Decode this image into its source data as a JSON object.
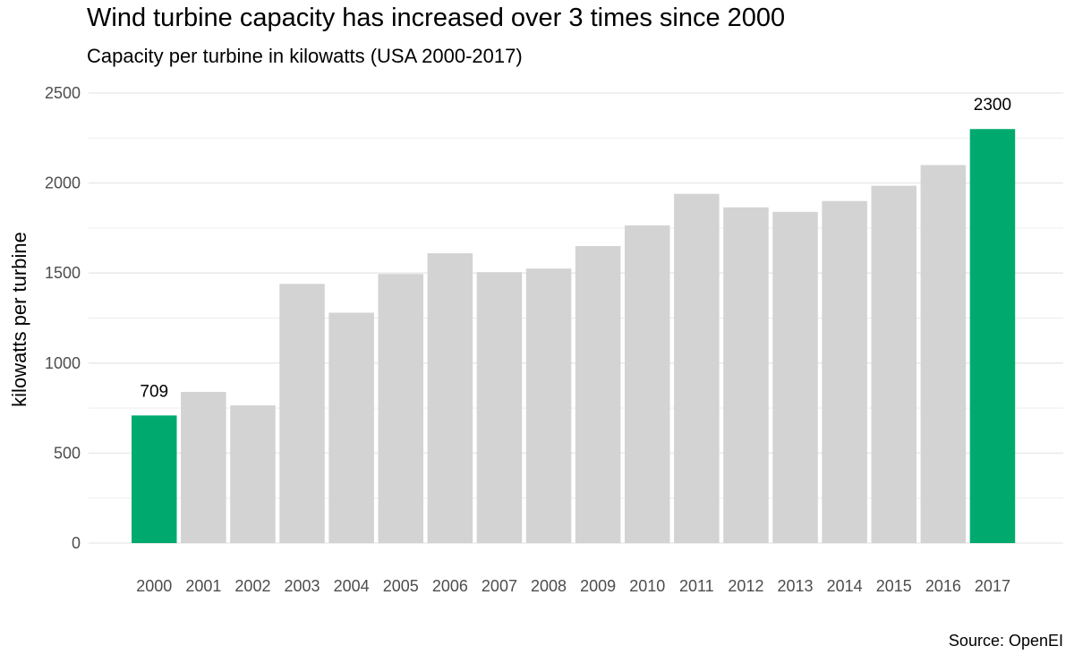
{
  "chart_data": {
    "type": "bar",
    "title": "Wind turbine capacity has increased over 3 times since 2000",
    "subtitle": "Capacity per turbine in kilowatts (USA 2000-2017)",
    "caption": "Source: OpenEI",
    "xlabel": "",
    "ylabel": "kilowatts per turbine",
    "ylim": [
      0,
      2500
    ],
    "yticks": [
      0,
      500,
      1000,
      1500,
      2000,
      2500
    ],
    "grid": true,
    "categories": [
      "2000",
      "2001",
      "2002",
      "2003",
      "2004",
      "2005",
      "2006",
      "2007",
      "2008",
      "2009",
      "2010",
      "2011",
      "2012",
      "2013",
      "2014",
      "2015",
      "2016",
      "2017"
    ],
    "values": [
      709,
      840,
      765,
      1440,
      1280,
      1495,
      1610,
      1505,
      1525,
      1650,
      1765,
      1940,
      1865,
      1840,
      1900,
      1985,
      2100,
      2300
    ],
    "highlighted": [
      "2000",
      "2017"
    ],
    "data_labels": [
      {
        "category": "2000",
        "text": "709"
      },
      {
        "category": "2017",
        "text": "2300"
      }
    ],
    "colors": {
      "highlight": "#00aa6e",
      "bar": "#d3d3d3",
      "grid": "#ebebeb"
    }
  }
}
